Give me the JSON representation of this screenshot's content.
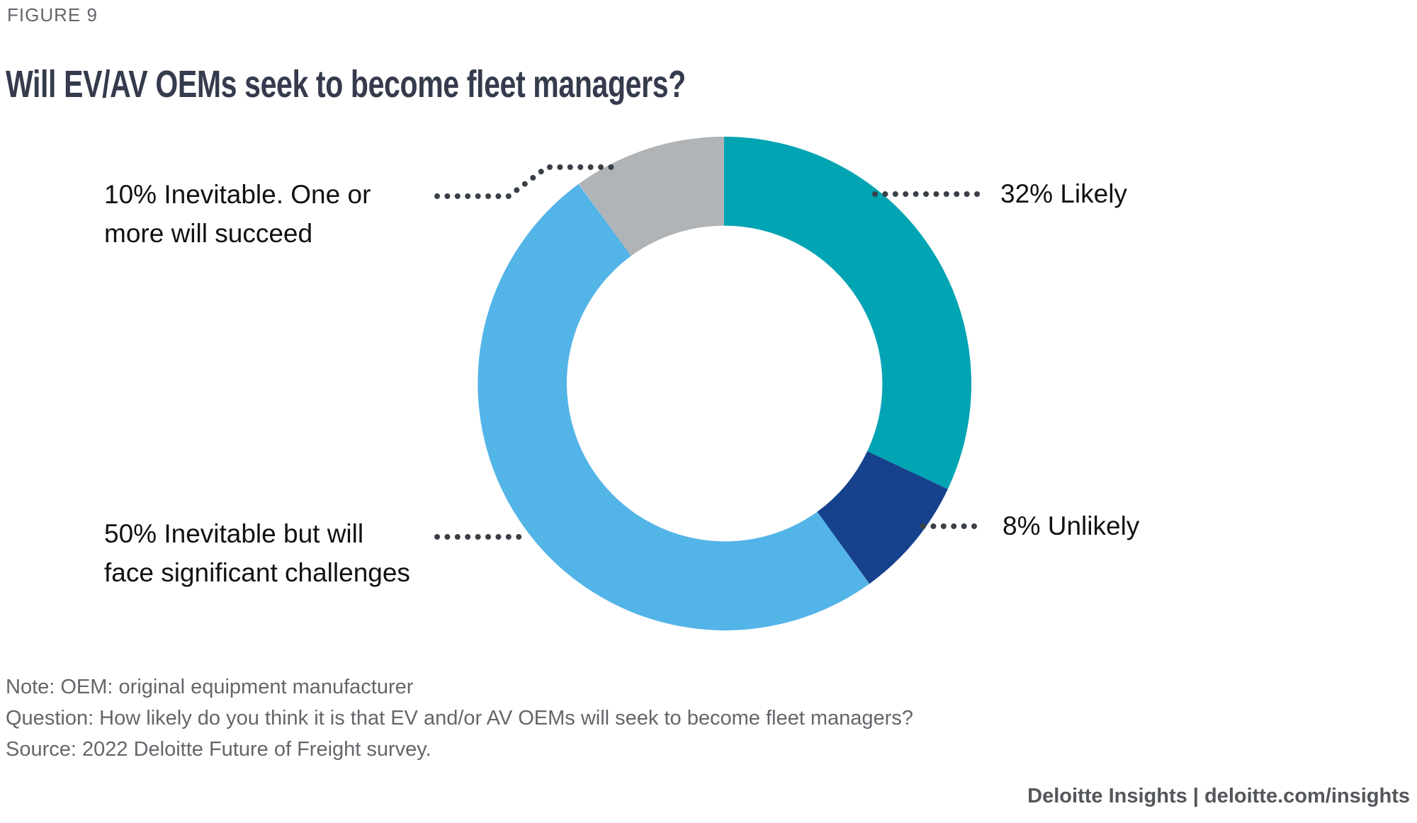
{
  "figure_label": "FIGURE 9",
  "title": "Will EV/AV OEMs seek to become fleet managers?",
  "chart_data": {
    "type": "pie",
    "subtype": "donut",
    "title": "Will EV/AV OEMs seek to become fleet managers?",
    "unit": "%",
    "direction": "clockwise",
    "start_angle_deg": 0,
    "inner_radius_ratio": 0.64,
    "segments": [
      {
        "label": "Likely",
        "value": 32,
        "color": "#00A4B3"
      },
      {
        "label": "Unlikely",
        "value": 8,
        "color": "#16418C"
      },
      {
        "label": "Inevitable but will face significant challenges",
        "value": 50,
        "color": "#53B4E8"
      },
      {
        "label": "Inevitable. One or more will succeed",
        "value": 10,
        "color": "#B1B4B6"
      }
    ]
  },
  "callouts": {
    "likely": "32% Likely",
    "unlikely": "8% Unlikely",
    "inevitable_succeed": [
      "10% Inevitable. One or",
      "more will succeed"
    ],
    "inevitable_challenges": [
      "50% Inevitable but will",
      "face significant challenges"
    ]
  },
  "notes": {
    "note": "Note: OEM: original equipment manufacturer",
    "question": "Question: How likely do you think it is that EV and/or AV OEMs will seek to become fleet managers?",
    "source": "Source: 2022 Deloitte Future of Freight survey."
  },
  "footer": {
    "text": "Deloitte Insights | deloitte.com/insights"
  },
  "colors": {
    "title": "#353B4D",
    "muted_text": "#63666A",
    "footer_text": "#53565A",
    "label_text": "#111111",
    "leader_dots": "#3A4047"
  }
}
